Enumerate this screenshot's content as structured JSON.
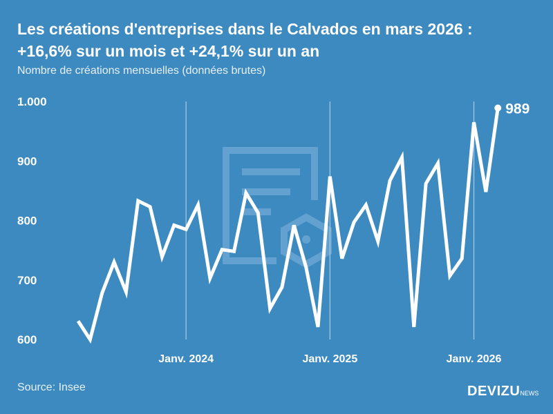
{
  "title_line1": "Les créations d'entreprises dans le Calvados en mars 2026 :",
  "title_line2": "+16,6% sur un mois et +24,1% sur un an",
  "subtitle": "Nombre de créations mensuelles (données brutes)",
  "source": "Source: Insee",
  "logo": {
    "main": "DEVIZU",
    "suffix": "NEWS"
  },
  "colors": {
    "background": "#3d8ac1",
    "line": "#ffffff",
    "gridline": "#a9cbe3"
  },
  "chart_data": {
    "type": "line",
    "title": "Les créations d'entreprises dans le Calvados en mars 2026 : +16,6% sur un mois et +24,1% sur un an",
    "ylabel": "Nombre de créations mensuelles (données brutes)",
    "ylim": [
      600,
      1000
    ],
    "yticks": [
      {
        "value": 600,
        "label": "600"
      },
      {
        "value": 700,
        "label": "700"
      },
      {
        "value": 800,
        "label": "800"
      },
      {
        "value": 900,
        "label": "900"
      },
      {
        "value": 1000,
        "label": "1.000"
      }
    ],
    "xticks": [
      {
        "x": "2024-01",
        "label": "Janv. 2024"
      },
      {
        "x": "2025-01",
        "label": "Janv. 2025"
      },
      {
        "x": "2026-01",
        "label": "Janv. 2026"
      }
    ],
    "x": [
      "2023-04",
      "2023-05",
      "2023-06",
      "2023-07",
      "2023-08",
      "2023-09",
      "2023-10",
      "2023-11",
      "2023-12",
      "2024-01",
      "2024-02",
      "2024-03",
      "2024-04",
      "2024-05",
      "2024-06",
      "2024-07",
      "2024-08",
      "2024-09",
      "2024-10",
      "2024-11",
      "2024-12",
      "2025-01",
      "2025-02",
      "2025-03",
      "2025-04",
      "2025-05",
      "2025-06",
      "2025-07",
      "2025-08",
      "2025-09",
      "2025-10",
      "2025-11",
      "2025-12",
      "2026-01",
      "2026-02",
      "2026-03"
    ],
    "values": [
      631,
      600,
      678,
      730,
      680,
      833,
      823,
      739,
      792,
      785,
      826,
      703,
      751,
      748,
      846,
      813,
      652,
      688,
      792,
      722,
      621,
      874,
      736,
      797,
      826,
      765,
      867,
      906,
      621,
      862,
      896,
      707,
      736,
      965,
      848,
      989
    ],
    "annotations": [
      {
        "x": "2026-03",
        "label": "989"
      }
    ],
    "grid": "vertical lines at January"
  }
}
